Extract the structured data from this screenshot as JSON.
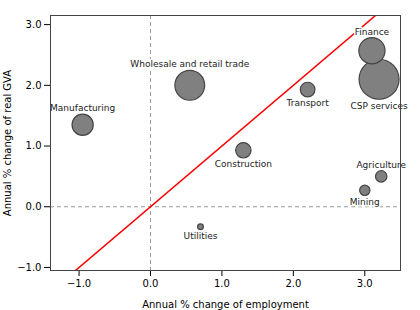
{
  "chart_data": {
    "type": "bubble",
    "xlabel": "Annual % change of employment",
    "ylabel": "Annual % change of real GVA",
    "labels": [
      "Manufacturing",
      "Wholesale and retail trade",
      "Construction",
      "Utilities",
      "Transport",
      "Finance",
      "CSP services",
      "Agriculture",
      "Mining"
    ],
    "x": [
      -0.95,
      0.55,
      1.3,
      0.7,
      2.2,
      3.1,
      3.2,
      3.23,
      3.0
    ],
    "y": [
      1.35,
      2.0,
      0.93,
      -0.33,
      1.93,
      2.57,
      2.1,
      0.5,
      0.27
    ],
    "sizes": [
      380,
      750,
      200,
      28,
      180,
      580,
      1350,
      110,
      90
    ],
    "color": "#808080",
    "ref_line": {
      "x": [
        -1.1,
        3.4
      ],
      "y": [
        -1.1,
        3.4
      ],
      "color": "red"
    },
    "zero_lines": {
      "x": 0,
      "y": 0,
      "line_style": "dashed"
    },
    "xlim": [
      -1.4,
      3.5
    ],
    "ylim": [
      -1.05,
      3.15
    ],
    "xticks": [
      -1,
      0,
      1,
      2,
      3
    ],
    "yticks": [
      -1,
      0,
      1,
      2,
      3
    ],
    "grid": false
  }
}
